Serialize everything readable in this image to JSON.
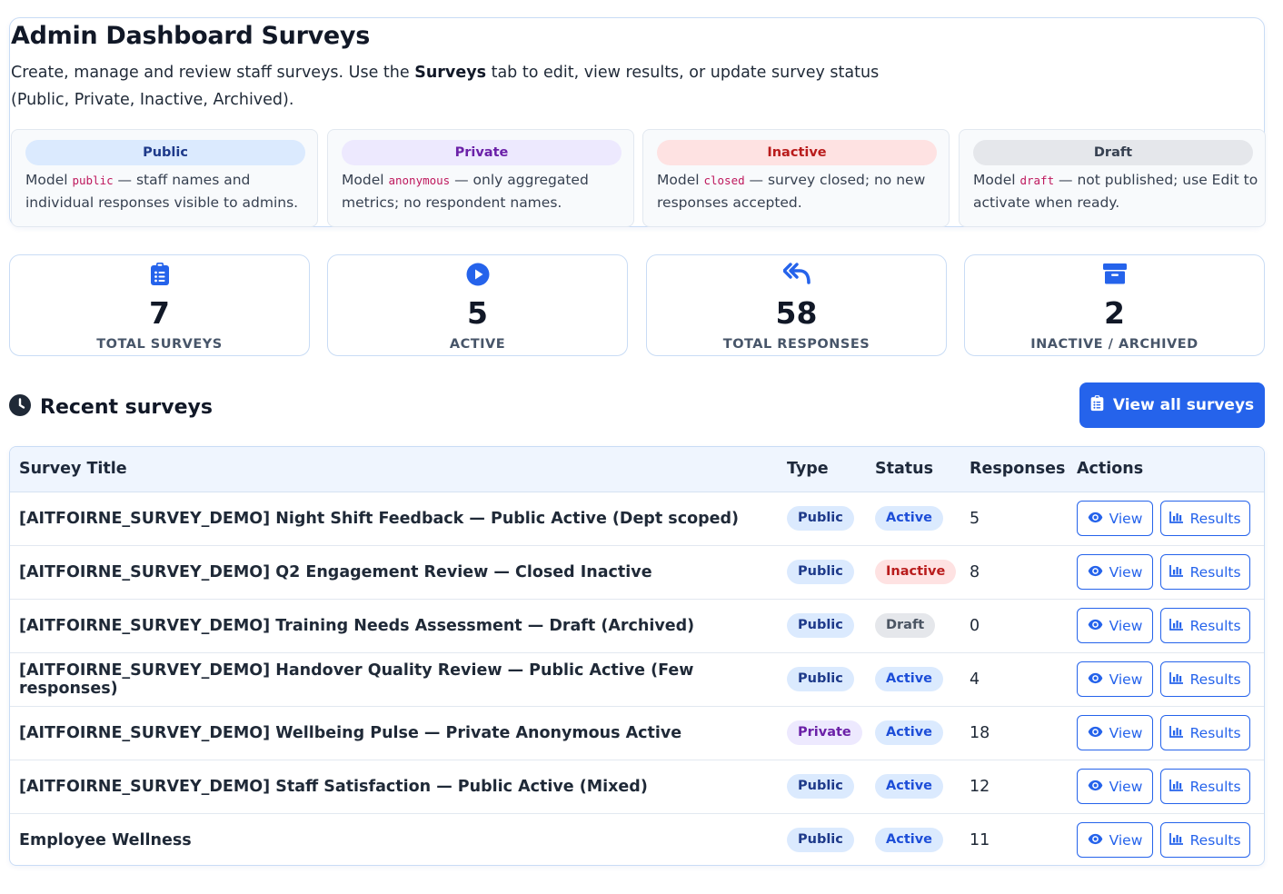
{
  "page": {
    "title": "Admin Dashboard Surveys",
    "intro_before": "Create, manage and review staff surveys. Use the ",
    "intro_bold": "Surveys",
    "intro_after": " tab to edit, view results, or update survey status (Public, Private, Inactive, Archived)."
  },
  "legend": [
    {
      "label": "Public",
      "pre": "Model ",
      "code": "public",
      "post": " — staff names and individual responses visible to admins.",
      "bg": "#dbeafe",
      "fg": "#1e3a8a"
    },
    {
      "label": "Private",
      "pre": "Model ",
      "code": "anonymous",
      "post": " — only aggregated metrics; no respondent names.",
      "bg": "#ede9fe",
      "fg": "#6b21a8"
    },
    {
      "label": "Inactive",
      "pre": "Model ",
      "code": "closed",
      "post": " — survey closed; no new responses accepted.",
      "bg": "#fee2e2",
      "fg": "#b91c1c"
    },
    {
      "label": "Draft",
      "pre": "Model ",
      "code": "draft",
      "post": " — not published; use Edit to activate when ready.",
      "bg": "#e5e7eb",
      "fg": "#374151"
    }
  ],
  "stats": [
    {
      "value": "7",
      "label": "TOTAL SURVEYS",
      "icon": "clipboard-list-icon"
    },
    {
      "value": "5",
      "label": "ACTIVE",
      "icon": "play-circle-icon"
    },
    {
      "value": "58",
      "label": "TOTAL RESPONSES",
      "icon": "reply-all-icon"
    },
    {
      "value": "2",
      "label": "INACTIVE / ARCHIVED",
      "icon": "archive-box-icon"
    }
  ],
  "recent": {
    "title": "Recent surveys",
    "view_all_label": "View all surveys"
  },
  "table": {
    "headers": {
      "title": "Survey Title",
      "type": "Type",
      "status": "Status",
      "responses": "Responses",
      "actions": "Actions"
    },
    "view_label": "View",
    "results_label": "Results",
    "rows": [
      {
        "title": "[AITFOIRNE_SURVEY_DEMO] Night Shift Feedback — Public Active (Dept scoped)",
        "type": "Public",
        "status": "Active",
        "responses": "5"
      },
      {
        "title": "[AITFOIRNE_SURVEY_DEMO] Q2 Engagement Review — Closed Inactive",
        "type": "Public",
        "status": "Inactive",
        "responses": "8"
      },
      {
        "title": "[AITFOIRNE_SURVEY_DEMO] Training Needs Assessment — Draft (Archived)",
        "type": "Public",
        "status": "Draft",
        "responses": "0"
      },
      {
        "title": "[AITFOIRNE_SURVEY_DEMO] Handover Quality Review — Public Active (Few responses)",
        "type": "Public",
        "status": "Active",
        "responses": "4"
      },
      {
        "title": "[AITFOIRNE_SURVEY_DEMO] Wellbeing Pulse — Private Anonymous Active",
        "type": "Private",
        "status": "Active",
        "responses": "18"
      },
      {
        "title": "[AITFOIRNE_SURVEY_DEMO] Staff Satisfaction — Public Active (Mixed)",
        "type": "Public",
        "status": "Active",
        "responses": "12"
      },
      {
        "title": "Employee Wellness",
        "type": "Public",
        "status": "Active",
        "responses": "11"
      }
    ]
  },
  "colors": {
    "accent": "#2563eb",
    "heading": "#111827",
    "border": "#c9dcf5"
  }
}
